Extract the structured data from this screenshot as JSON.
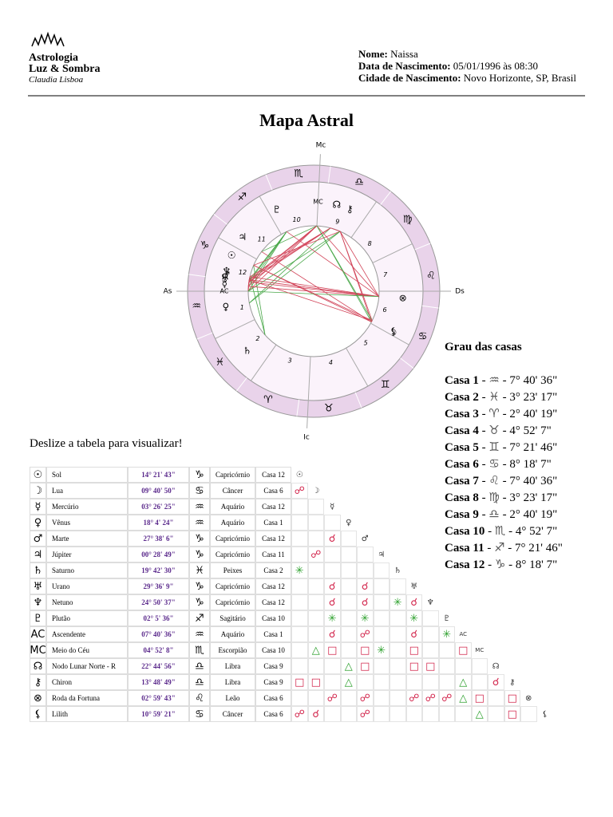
{
  "header": {
    "logo": {
      "line1": "Astrologia",
      "line2": "Luz & Sombra",
      "line3": "Claudia Lisboa"
    },
    "fields": [
      {
        "label": "Nome:",
        "value": "Naissa"
      },
      {
        "label": "Data de Nascimento:",
        "value": "05/01/1996 às 08:30"
      },
      {
        "label": "Cidade de Nascimento:",
        "value": "Novo Horizonte, SP, Brasil"
      }
    ]
  },
  "title": "Mapa Astral",
  "wheel": {
    "angles": {
      "mc": "Mc",
      "as": "As",
      "ds": "Ds",
      "ic": "Ic"
    },
    "signs": [
      "♈",
      "♉",
      "♊",
      "♋",
      "♌",
      "♍",
      "♎",
      "♏",
      "♐",
      "♑",
      "♒",
      "♓"
    ],
    "house_numbers": [
      "1",
      "2",
      "3",
      "4",
      "5",
      "6",
      "7",
      "8",
      "9",
      "10",
      "11",
      "12"
    ]
  },
  "houses": {
    "title": "Grau das casas",
    "items": [
      {
        "label": "Casa 1",
        "sign": "♒",
        "degree": "7° 40' 36\""
      },
      {
        "label": "Casa 2",
        "sign": "♓",
        "degree": "3° 23' 17\""
      },
      {
        "label": "Casa 3",
        "sign": "♈",
        "degree": "2° 40' 19\""
      },
      {
        "label": "Casa 4",
        "sign": "♉",
        "degree": "4° 52' 7\""
      },
      {
        "label": "Casa 5",
        "sign": "♊",
        "degree": "7° 21' 46\""
      },
      {
        "label": "Casa 6",
        "sign": "♋",
        "degree": "8° 18' 7\""
      },
      {
        "label": "Casa 7",
        "sign": "♌",
        "degree": "7° 40' 36\""
      },
      {
        "label": "Casa 8",
        "sign": "♍",
        "degree": "3° 23' 17\""
      },
      {
        "label": "Casa 9",
        "sign": "♎",
        "degree": "2° 40' 19\""
      },
      {
        "label": "Casa 10",
        "sign": "♏",
        "degree": "4° 52' 7\""
      },
      {
        "label": "Casa 11",
        "sign": "♐",
        "degree": "7° 21' 46\""
      },
      {
        "label": "Casa 12",
        "sign": "♑",
        "degree": "8° 18' 7\""
      }
    ]
  },
  "scroll_hint": "Deslize a tabela para visualizar!",
  "table": {
    "rows": [
      {
        "glyph": "☉",
        "name": "Sol",
        "degree": "14° 21' 43\"",
        "sign": "♑",
        "sign_name": "Capricórnio",
        "house": "Casa 12",
        "aspects": [
          "☉"
        ]
      },
      {
        "glyph": "☽",
        "name": "Lua",
        "degree": "09° 40' 50\"",
        "sign": "♋",
        "sign_name": "Câncer",
        "house": "Casa 6",
        "aspects": [
          "☍",
          "☽"
        ]
      },
      {
        "glyph": "☿",
        "name": "Mercúrio",
        "degree": "03° 26' 25\"",
        "sign": "♒",
        "sign_name": "Aquário",
        "house": "Casa 12",
        "aspects": [
          null,
          null,
          "☿"
        ]
      },
      {
        "glyph": "♀",
        "name": "Vênus",
        "degree": "18° 4' 24\"",
        "sign": "♒",
        "sign_name": "Aquário",
        "house": "Casa 1",
        "aspects": [
          null,
          null,
          null,
          "♀"
        ]
      },
      {
        "glyph": "♂",
        "name": "Marte",
        "degree": "27° 38' 6\"",
        "sign": "♑",
        "sign_name": "Capricórnio",
        "house": "Casa 12",
        "aspects": [
          null,
          null,
          "☌",
          null,
          "♂"
        ]
      },
      {
        "glyph": "♃",
        "name": "Júpiter",
        "degree": "00° 28' 49\"",
        "sign": "♑",
        "sign_name": "Capricórnio",
        "house": "Casa 11",
        "aspects": [
          null,
          "☍",
          null,
          null,
          null,
          "♃"
        ]
      },
      {
        "glyph": "♄",
        "name": "Saturno",
        "degree": "19° 42' 30\"",
        "sign": "♓",
        "sign_name": "Peixes",
        "house": "Casa 2",
        "aspects": [
          "✳",
          null,
          null,
          null,
          null,
          null,
          "♄"
        ]
      },
      {
        "glyph": "♅",
        "name": "Urano",
        "degree": "29° 36' 9\"",
        "sign": "♑",
        "sign_name": "Capricórnio",
        "house": "Casa 12",
        "aspects": [
          null,
          null,
          "☌",
          null,
          "☌",
          null,
          null,
          "♅"
        ]
      },
      {
        "glyph": "♆",
        "name": "Netuno",
        "degree": "24° 50' 37\"",
        "sign": "♑",
        "sign_name": "Capricórnio",
        "house": "Casa 12",
        "aspects": [
          null,
          null,
          "☌",
          null,
          "☌",
          null,
          "✳",
          "☌",
          "♆"
        ]
      },
      {
        "glyph": "♇",
        "name": "Plutão",
        "degree": "02° 5' 36\"",
        "sign": "♐",
        "sign_name": "Sagitário",
        "house": "Casa 10",
        "aspects": [
          null,
          null,
          "✳",
          null,
          "✳",
          null,
          null,
          "✳",
          null,
          "♇"
        ]
      },
      {
        "glyph": "AC",
        "name": "Ascendente",
        "degree": "07° 40' 36\"",
        "sign": "♒",
        "sign_name": "Aquário",
        "house": "Casa 1",
        "aspects": [
          null,
          null,
          "☌",
          null,
          "☍",
          null,
          null,
          "☌",
          null,
          "✳",
          "AC"
        ]
      },
      {
        "glyph": "MC",
        "name": "Meio do Céu",
        "degree": "04° 52' 8\"",
        "sign": "♏",
        "sign_name": "Escorpião",
        "house": "Casa 10",
        "aspects": [
          null,
          "△",
          "□",
          null,
          "□",
          "✳",
          null,
          "□",
          null,
          null,
          "□",
          "MC"
        ]
      },
      {
        "glyph": "☊",
        "name": "Nodo Lunar Norte - R",
        "degree": "22° 44' 56\"",
        "sign": "♎",
        "sign_name": "Libra",
        "house": "Casa 9",
        "aspects": [
          null,
          null,
          null,
          "△",
          "□",
          null,
          null,
          "□",
          "□",
          null,
          null,
          null,
          "☊"
        ]
      },
      {
        "glyph": "⚷",
        "name": "Chiron",
        "degree": "13° 48' 49\"",
        "sign": "♎",
        "sign_name": "Libra",
        "house": "Casa 9",
        "aspects": [
          "□",
          "□",
          null,
          "△",
          null,
          null,
          null,
          null,
          null,
          null,
          "△",
          null,
          "☌",
          "⚷"
        ]
      },
      {
        "glyph": "⊗",
        "name": "Roda da Fortuna",
        "degree": "02° 59' 43\"",
        "sign": "♌",
        "sign_name": "Leão",
        "house": "Casa 6",
        "aspects": [
          null,
          null,
          "☍",
          null,
          "☍",
          null,
          null,
          "☍",
          "☍",
          "☍",
          "△",
          "□",
          null,
          "□",
          "⊗"
        ]
      },
      {
        "glyph": "⚸",
        "name": "Lilith",
        "degree": "10° 59' 21\"",
        "sign": "♋",
        "sign_name": "Câncer",
        "house": "Casa 6",
        "aspects": [
          "☍",
          "☌",
          null,
          null,
          "☍",
          null,
          null,
          null,
          null,
          null,
          null,
          "△",
          null,
          "□",
          null,
          "⚸"
        ]
      }
    ]
  }
}
